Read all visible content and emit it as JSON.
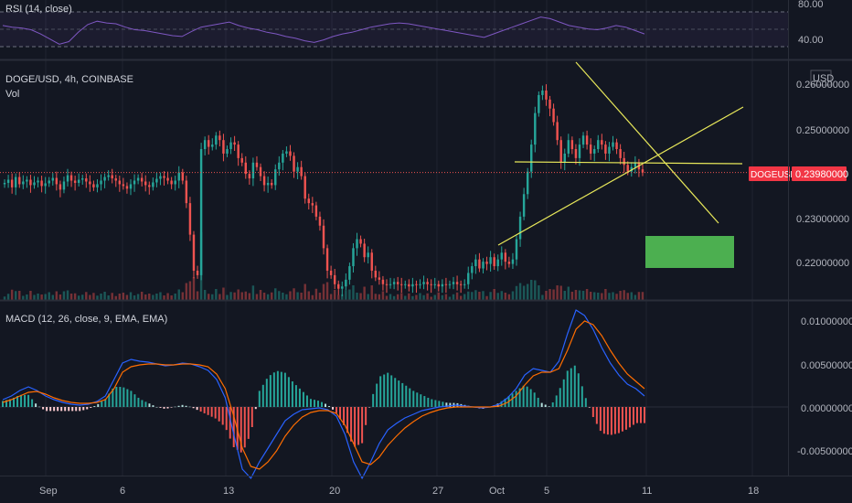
{
  "chart_data": [
    {
      "type": "line",
      "pane": "rsi",
      "title": "RSI (14, close)",
      "y_ticks": [
        "80.00",
        "40.00"
      ],
      "ylim": [
        20,
        90
      ],
      "bands": [
        70,
        50,
        30
      ],
      "series": [
        {
          "color": "#7e57c2",
          "values": [
            60,
            58,
            57,
            55,
            50,
            44,
            38,
            41,
            52,
            61,
            65,
            63,
            62,
            58,
            55,
            54,
            52,
            50,
            48,
            47,
            53,
            58,
            60,
            62,
            64,
            60,
            57,
            55,
            52,
            50,
            47,
            45,
            42,
            40,
            43,
            47,
            50,
            52,
            55,
            58,
            60,
            62,
            63,
            62,
            60,
            58,
            56,
            54,
            52,
            50,
            48,
            46,
            50,
            54,
            58,
            62,
            66,
            70,
            68,
            64,
            60,
            58,
            56,
            55,
            57,
            60,
            58,
            54,
            50
          ]
        }
      ]
    },
    {
      "type": "candlestick",
      "pane": "price",
      "title": "DOGE/USD, 4h, COINBASE",
      "volume_label": "Vol",
      "currency": "USD",
      "y_ticks": [
        "0.26000000",
        "0.25000000",
        "0.23000000",
        "0.22000000"
      ],
      "ylim": [
        0.2115,
        0.2645
      ],
      "price_tag": {
        "symbol": "DOGEUSD",
        "value": "0.23980000"
      },
      "current_price": 0.2398,
      "x_ticks": [
        "Sep",
        "6",
        "13",
        "20",
        "27",
        "Oct",
        "5",
        "11",
        "18"
      ],
      "candles_close": [
        0.2375,
        0.2382,
        0.2365,
        0.2388,
        0.2372,
        0.2378,
        0.2382,
        0.237,
        0.2376,
        0.238,
        0.2368,
        0.2374,
        0.238,
        0.2386,
        0.2372,
        0.236,
        0.2378,
        0.2392,
        0.238,
        0.2375,
        0.2382,
        0.2385,
        0.2378,
        0.2372,
        0.2365,
        0.2372,
        0.238,
        0.2388,
        0.2392,
        0.2385,
        0.238,
        0.2372,
        0.2368,
        0.2362,
        0.2372,
        0.238,
        0.2386,
        0.2378,
        0.237,
        0.2366,
        0.2376,
        0.2384,
        0.239,
        0.2386,
        0.238,
        0.2372,
        0.238,
        0.2398,
        0.238,
        0.233,
        0.226,
        0.218,
        0.217,
        0.245,
        0.247,
        0.2455,
        0.246,
        0.248,
        0.247,
        0.244,
        0.245,
        0.2465,
        0.246,
        0.243,
        0.242,
        0.2395,
        0.2385,
        0.242,
        0.241,
        0.239,
        0.237,
        0.2375,
        0.237,
        0.2405,
        0.242,
        0.244,
        0.2445,
        0.2435,
        0.24,
        0.241,
        0.239,
        0.234,
        0.233,
        0.2325,
        0.23,
        0.228,
        0.223,
        0.218,
        0.217,
        0.215,
        0.214,
        0.2145,
        0.216,
        0.219,
        0.223,
        0.225,
        0.224,
        0.221,
        0.222,
        0.218,
        0.2165,
        0.216,
        0.215,
        0.2148,
        0.215,
        0.2155,
        0.215,
        0.2148,
        0.215,
        0.2145,
        0.215,
        0.2148,
        0.215,
        0.2155,
        0.215,
        0.2148,
        0.215,
        0.2145,
        0.215,
        0.2148,
        0.215,
        0.2155,
        0.215,
        0.2148,
        0.215,
        0.2175,
        0.219,
        0.2205,
        0.2185,
        0.22,
        0.2195,
        0.221,
        0.219,
        0.2205,
        0.222,
        0.22,
        0.2195,
        0.2205,
        0.225,
        0.23,
        0.235,
        0.24,
        0.246,
        0.253,
        0.257,
        0.258,
        0.256,
        0.254,
        0.251,
        0.247,
        0.242,
        0.244,
        0.247,
        0.245,
        0.243,
        0.246,
        0.248,
        0.246,
        0.244,
        0.245,
        0.247,
        0.246,
        0.244,
        0.2455,
        0.2465,
        0.245,
        0.243,
        0.2415,
        0.24,
        0.241,
        0.242,
        0.2405,
        0.2398
      ]
    },
    {
      "type": "line",
      "pane": "macd",
      "title": "MACD (12, 26, close, 9, EMA, EMA)",
      "y_ticks": [
        "0.01000000",
        "0.00500000",
        "0.00000000",
        "-0.00500000"
      ],
      "ylim": [
        -0.0075,
        0.0115
      ],
      "series": [
        {
          "color": "#2962ff",
          "values": [
            0.0008,
            0.0012,
            0.0018,
            0.0022,
            0.0018,
            0.0012,
            0.0008,
            0.0005,
            0.0003,
            0.0002,
            0.0003,
            0.0006,
            0.0012,
            0.003,
            0.0048,
            0.0052,
            0.005,
            0.0049,
            0.0047,
            0.0045,
            0.0046,
            0.0048,
            0.0047,
            0.0044,
            0.004,
            0.003,
            0.001,
            -0.003,
            -0.0068,
            -0.0078,
            -0.006,
            -0.0045,
            -0.003,
            -0.0015,
            -0.0008,
            -0.0003,
            -0.0002,
            -0.0001,
            -0.0003,
            -0.001,
            -0.003,
            -0.006,
            -0.0078,
            -0.006,
            -0.004,
            -0.0025,
            -0.0018,
            -0.0012,
            -0.0008,
            -0.0004,
            -0.0002,
            0.0,
            0.0001,
            0.0002,
            0.0001,
            0.0,
            -0.0001,
            0.0,
            0.0003,
            0.001,
            0.002,
            0.0035,
            0.0042,
            0.004,
            0.0038,
            0.005,
            0.008,
            0.0106,
            0.01,
            0.0085,
            0.0065,
            0.0048,
            0.0035,
            0.0025,
            0.002,
            0.0012
          ]
        },
        {
          "color": "#ff6d00",
          "values": [
            0.0005,
            0.0008,
            0.0012,
            0.0016,
            0.0017,
            0.0014,
            0.001,
            0.0007,
            0.0005,
            0.0004,
            0.0004,
            0.0005,
            0.0008,
            0.002,
            0.0038,
            0.0044,
            0.0046,
            0.0047,
            0.0047,
            0.0046,
            0.0046,
            0.0047,
            0.0047,
            0.0046,
            0.0044,
            0.0036,
            0.002,
            -0.001,
            -0.0045,
            -0.0065,
            -0.0068,
            -0.006,
            -0.0048,
            -0.0032,
            -0.002,
            -0.0011,
            -0.0006,
            -0.0004,
            -0.0004,
            -0.0007,
            -0.002,
            -0.004,
            -0.006,
            -0.0063,
            -0.0055,
            -0.0042,
            -0.0032,
            -0.0023,
            -0.0016,
            -0.001,
            -0.0006,
            -0.0003,
            -0.0001,
            0.0,
            0.0,
            0.0,
            0.0,
            0.0,
            0.0001,
            0.0005,
            0.0012,
            0.0024,
            0.0034,
            0.0038,
            0.0038,
            0.0042,
            0.0062,
            0.0085,
            0.0094,
            0.009,
            0.0078,
            0.0062,
            0.0048,
            0.0036,
            0.0028,
            0.002
          ]
        }
      ]
    }
  ],
  "drawings": {
    "trendline_color": "#e8e85a",
    "target_box_color": "#4caf50"
  }
}
